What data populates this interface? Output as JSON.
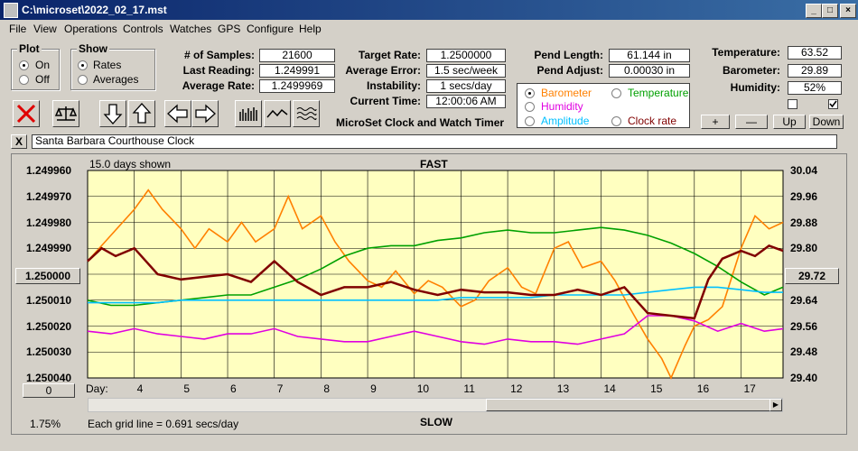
{
  "window": {
    "title": "C:\\microset\\2022_02_17.mst"
  },
  "menu": [
    "File",
    "View",
    "Operations",
    "Controls",
    "Watches",
    "GPS",
    "Configure",
    "Help"
  ],
  "plot_group": {
    "title": "Plot",
    "options": [
      "On",
      "Off"
    ],
    "selected": "On"
  },
  "show_group": {
    "title": "Show",
    "options": [
      "Rates",
      "Averages"
    ],
    "selected": "Rates"
  },
  "stats": {
    "samples_label": "# of Samples:",
    "samples": "21600",
    "last_label": "Last Reading:",
    "last": "1.249991",
    "avg_label": "Average Rate:",
    "avg": "1.2499969",
    "target_label": "Target Rate:",
    "target": "1.2500000",
    "err_label": "Average Error:",
    "err": "1.5 sec/week",
    "inst_label": "Instability:",
    "inst": "1 secs/day",
    "time_label": "Current Time:",
    "time": "12:00:06 AM",
    "app_name": "MicroSet Clock and Watch Timer",
    "pend_len_label": "Pend Length:",
    "pend_len": "61.144 in",
    "pend_adj_label": "Pend Adjust:",
    "pend_adj": "0.00030 in",
    "temp_label": "Temperature:",
    "temp": "63.52",
    "baro_label": "Barometer:",
    "baro": "29.89",
    "hum_label": "Humidity:",
    "hum": "52%"
  },
  "legend": [
    {
      "name": "Barometer",
      "color": "#ff8000",
      "selected": true
    },
    {
      "name": "Temperature",
      "color": "#00a000",
      "selected": false
    },
    {
      "name": "Humidity",
      "color": "#e000e0",
      "selected": false
    },
    {
      "name": "Amplitude",
      "color": "#00c0ff",
      "selected": false
    },
    {
      "name": "Clock rate",
      "color": "#800000",
      "selected": false
    }
  ],
  "adjust_buttons": [
    "+",
    "—",
    "Up",
    "Down"
  ],
  "clock_name": "Santa Barbara Courthouse Clock",
  "close_label": "X",
  "chart_data": {
    "type": "line",
    "days_shown_label": "15.0 days shown",
    "top_label": "FAST",
    "bottom_label": "SLOW",
    "grid_note": "Each grid line = 0.691 secs/day",
    "x_axis_label": "Day:",
    "x_ticks": [
      "4",
      "5",
      "6",
      "7",
      "8",
      "9",
      "10",
      "11",
      "12",
      "13",
      "14",
      "15",
      "16",
      "17"
    ],
    "x_range": [
      3.0,
      17.9
    ],
    "left_ticks": [
      "1.249960",
      "1.249970",
      "1.249980",
      "1.249990",
      "1.250000",
      "1.250010",
      "1.250020",
      "1.250030",
      "1.250040"
    ],
    "left_center_value": "1.250000",
    "right_ticks": [
      "30.04",
      "29.96",
      "29.88",
      "29.80",
      "29.72",
      "29.64",
      "29.56",
      "29.48",
      "29.40"
    ],
    "right_center_value": "29.72",
    "bottom_left_value": "0",
    "percent_value": "1.75%",
    "series": [
      {
        "name": "Barometer",
        "color": "#ff8000",
        "axis": "right",
        "x": [
          3,
          3.5,
          4,
          4.3,
          4.6,
          5,
          5.3,
          5.6,
          6,
          6.3,
          6.6,
          7,
          7.3,
          7.6,
          8,
          8.3,
          8.6,
          9,
          9.3,
          9.6,
          10,
          10.3,
          10.6,
          11,
          11.3,
          11.6,
          12,
          12.3,
          12.6,
          13,
          13.3,
          13.6,
          14,
          14.3,
          14.6,
          15,
          15.3,
          15.5,
          15.8,
          16,
          16.3,
          16.6,
          17,
          17.3,
          17.6,
          17.9
        ],
        "y": [
          29.76,
          29.84,
          29.92,
          29.98,
          29.92,
          29.86,
          29.8,
          29.86,
          29.82,
          29.88,
          29.82,
          29.86,
          29.96,
          29.86,
          29.9,
          29.82,
          29.76,
          29.7,
          29.68,
          29.73,
          29.66,
          29.7,
          29.68,
          29.62,
          29.64,
          29.7,
          29.74,
          29.68,
          29.66,
          29.8,
          29.82,
          29.74,
          29.76,
          29.7,
          29.62,
          29.52,
          29.46,
          29.4,
          29.5,
          29.56,
          29.58,
          29.62,
          29.8,
          29.9,
          29.86,
          29.88
        ]
      },
      {
        "name": "Temperature",
        "color": "#00a000",
        "axis": "left",
        "x": [
          3,
          3.5,
          4,
          4.5,
          5,
          5.5,
          6,
          6.5,
          7,
          7.5,
          8,
          8.5,
          9,
          9.5,
          10,
          10.5,
          11,
          11.5,
          12,
          12.5,
          13,
          13.5,
          14,
          14.5,
          15,
          15.5,
          16,
          16.5,
          17,
          17.5,
          17.9
        ],
        "y": [
          1.25001,
          1.250012,
          1.250012,
          1.250011,
          1.25001,
          1.250009,
          1.250008,
          1.250008,
          1.250005,
          1.250002,
          1.249998,
          1.249993,
          1.24999,
          1.249989,
          1.249989,
          1.249987,
          1.249986,
          1.249984,
          1.249983,
          1.249984,
          1.249984,
          1.249983,
          1.249982,
          1.249983,
          1.249985,
          1.249988,
          1.249992,
          1.249997,
          1.250003,
          1.250008,
          1.250005
        ]
      },
      {
        "name": "Humidity",
        "color": "#e000e0",
        "axis": "left",
        "x": [
          3,
          3.5,
          4,
          4.5,
          5,
          5.5,
          6,
          6.5,
          7,
          7.5,
          8,
          8.5,
          9,
          9.5,
          10,
          10.5,
          11,
          11.5,
          12,
          12.5,
          13,
          13.5,
          14,
          14.5,
          15,
          15.5,
          16,
          16.5,
          17,
          17.5,
          17.9
        ],
        "y": [
          1.250022,
          1.250023,
          1.250021,
          1.250023,
          1.250024,
          1.250025,
          1.250023,
          1.250023,
          1.250021,
          1.250024,
          1.250025,
          1.250026,
          1.250026,
          1.250024,
          1.250022,
          1.250024,
          1.250026,
          1.250027,
          1.250025,
          1.250026,
          1.250026,
          1.250027,
          1.250025,
          1.250023,
          1.250016,
          1.250016,
          1.250018,
          1.250022,
          1.250019,
          1.250022,
          1.250021
        ]
      },
      {
        "name": "Amplitude",
        "color": "#00c0ff",
        "axis": "left",
        "x": [
          3,
          3.5,
          4,
          4.5,
          5,
          5.5,
          6,
          6.5,
          7,
          7.5,
          8,
          8.5,
          9,
          9.5,
          10,
          10.5,
          11,
          11.5,
          12,
          12.5,
          13,
          13.5,
          14,
          14.5,
          15,
          15.5,
          16,
          16.5,
          17,
          17.5,
          17.9
        ],
        "y": [
          1.250011,
          1.250011,
          1.250011,
          1.250011,
          1.25001,
          1.25001,
          1.25001,
          1.25001,
          1.25001,
          1.25001,
          1.25001,
          1.25001,
          1.25001,
          1.25001,
          1.25001,
          1.25001,
          1.250009,
          1.250009,
          1.250009,
          1.250009,
          1.250008,
          1.250008,
          1.250008,
          1.250008,
          1.250007,
          1.250006,
          1.250005,
          1.250005,
          1.250006,
          1.250007,
          1.250007
        ]
      },
      {
        "name": "Clock rate",
        "color": "#800000",
        "axis": "left",
        "x": [
          3,
          3.3,
          3.6,
          4,
          4.5,
          5,
          5.5,
          6,
          6.5,
          7,
          7.5,
          8,
          8.5,
          9,
          9.5,
          10,
          10.5,
          11,
          11.5,
          12,
          12.5,
          13,
          13.5,
          14,
          14.5,
          15,
          15.5,
          16,
          16.3,
          16.6,
          17,
          17.3,
          17.6,
          17.9
        ],
        "y": [
          1.249995,
          1.24999,
          1.249993,
          1.24999,
          1.25,
          1.250002,
          1.250001,
          1.25,
          1.250003,
          1.249995,
          1.250003,
          1.250008,
          1.250005,
          1.250005,
          1.250003,
          1.250006,
          1.250008,
          1.250006,
          1.250007,
          1.250007,
          1.250008,
          1.250008,
          1.250006,
          1.250008,
          1.250005,
          1.250015,
          1.250016,
          1.250017,
          1.250002,
          1.249994,
          1.249991,
          1.249993,
          1.249989,
          1.249991
        ]
      }
    ]
  }
}
